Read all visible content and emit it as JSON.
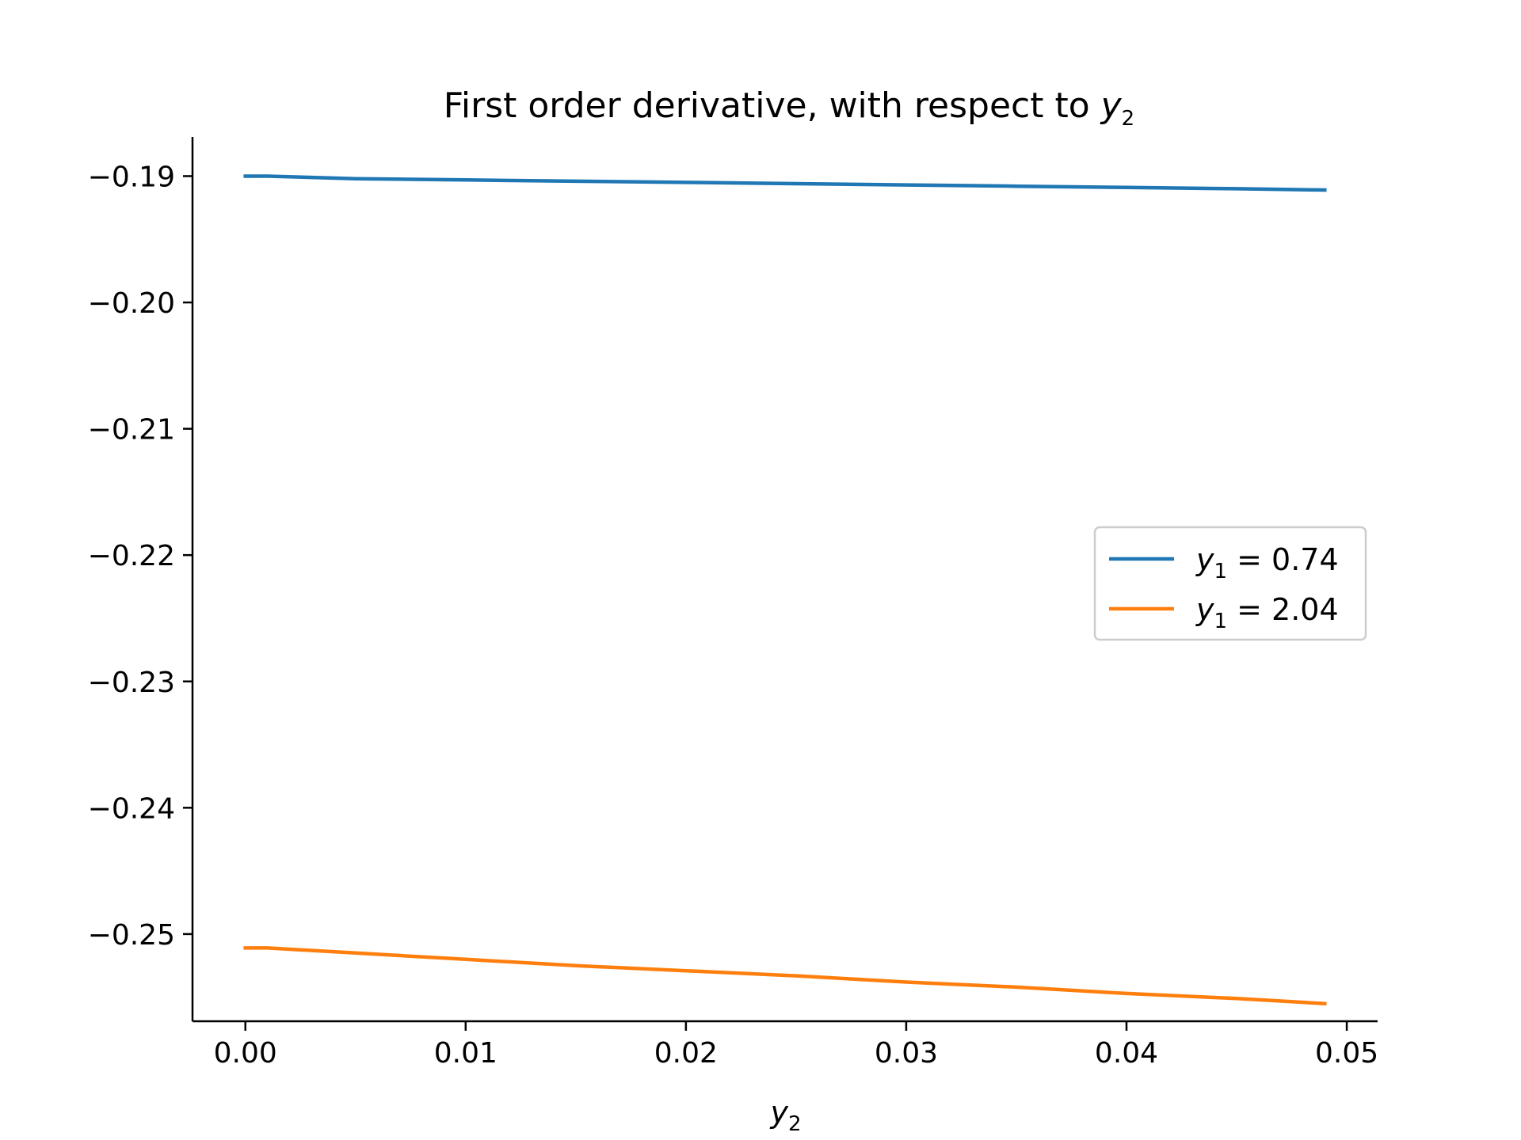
{
  "chart_data": {
    "type": "line",
    "title_main": "First order derivative, with respect to ",
    "title_var": "y",
    "title_sub": "2",
    "xlabel_var": "y",
    "xlabel_sub": "2",
    "ylabel": "",
    "xlim": [
      -0.0024,
      0.0514
    ],
    "ylim": [
      -0.2569,
      -0.1869
    ],
    "xticks": [
      0.0,
      0.01,
      0.02,
      0.03,
      0.04,
      0.05
    ],
    "xtick_labels": [
      "0.00",
      "0.01",
      "0.02",
      "0.03",
      "0.04",
      "0.05"
    ],
    "yticks": [
      -0.19,
      -0.2,
      -0.21,
      -0.22,
      -0.23,
      -0.24,
      -0.25
    ],
    "ytick_labels": [
      "−0.19",
      "−0.20",
      "−0.21",
      "−0.22",
      "−0.23",
      "−0.24",
      "−0.25"
    ],
    "grid": false,
    "legend_position": "center-right",
    "x": [
      0.0,
      0.001,
      0.005,
      0.01,
      0.015,
      0.02,
      0.025,
      0.03,
      0.035,
      0.04,
      0.045,
      0.049
    ],
    "series": [
      {
        "label_var": "y",
        "label_sub": "1",
        "label_rest": " = 0.74",
        "color": "#1f77b4",
        "values": [
          -0.19,
          -0.19,
          -0.1902,
          -0.1903,
          -0.1904,
          -0.1905,
          -0.1906,
          -0.1907,
          -0.1908,
          -0.1909,
          -0.191,
          -0.1911
        ]
      },
      {
        "label_var": "y",
        "label_sub": "1",
        "label_rest": " = 2.04",
        "color": "#ff7f0e",
        "values": [
          -0.2511,
          -0.2511,
          -0.2515,
          -0.252,
          -0.2525,
          -0.2529,
          -0.2533,
          -0.2538,
          -0.2542,
          -0.2547,
          -0.2551,
          -0.2555
        ]
      }
    ]
  }
}
